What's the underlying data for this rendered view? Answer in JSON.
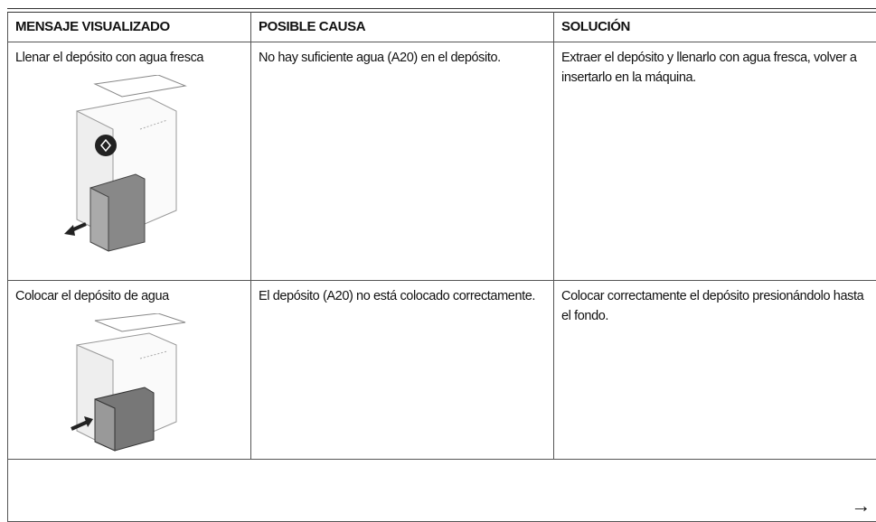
{
  "table": {
    "header": [
      "MENSAJE VISUALIZADO",
      "POSIBLE CAUSA",
      "SOLUCIÓN"
    ],
    "rows": [
      [
        "Llenar el depósito con agua fresca",
        "No hay suficiente agua (A20) en el depósito.",
        "Extraer el depósito y llenarlo con agua fresca, volver a insertarlo en la máquina."
      ],
      [
        "Colocar el depósito de agua",
        "El depósito (A20) no está colocado correctamente.",
        "Colocar correctamente el depósito presionándolo hasta el fondo."
      ]
    ]
  },
  "footer": {
    "arrow": "→"
  }
}
